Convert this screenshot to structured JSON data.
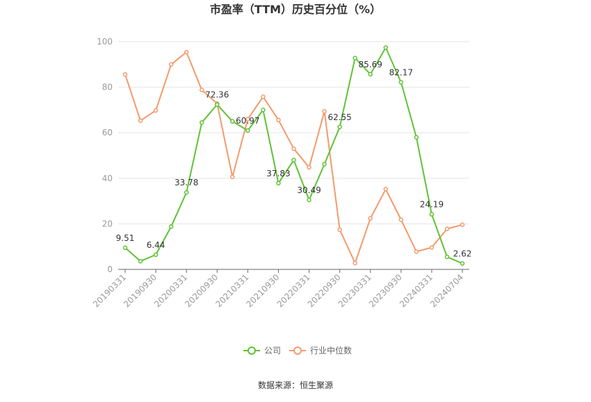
{
  "chart_data": {
    "type": "line",
    "title": "市盈率（TTM）历史百分位（%）",
    "source": "数据来源：恒生聚源",
    "xlabel": "",
    "ylabel": "",
    "ylim": [
      0,
      100
    ],
    "yticks": [
      0,
      20,
      40,
      60,
      80,
      100
    ],
    "x": [
      "20190331",
      "",
      "20190930",
      "",
      "20200331",
      "",
      "20200930",
      "",
      "20210331",
      "",
      "20210930",
      "",
      "20220331",
      "",
      "20220930",
      "",
      "20230331",
      "",
      "20230930",
      "",
      "20240331",
      "",
      "20240704"
    ],
    "x_tick_labels": [
      "20190331",
      "20190930",
      "20200331",
      "20200930",
      "20210331",
      "20210930",
      "20220331",
      "20220930",
      "20230331",
      "20230930",
      "20240331",
      "20240704"
    ],
    "grid": true,
    "legend_position": "bottom",
    "series": [
      {
        "name": "公司",
        "color": "#5fc236",
        "values": [
          9.51,
          3.6,
          6.44,
          18.8,
          33.78,
          64.5,
          72.36,
          65.0,
          60.97,
          70.0,
          37.83,
          48.0,
          30.49,
          46.2,
          62.55,
          92.8,
          85.69,
          97.4,
          82.17,
          58.0,
          24.19,
          5.5,
          2.62
        ],
        "labels": [
          "9.51",
          "",
          "6.44",
          "",
          "33.78",
          "",
          "72.36",
          "",
          "60.97",
          "",
          "37.83",
          "",
          "30.49",
          "",
          "62.55",
          "",
          "85.69",
          "",
          "82.17",
          "",
          "24.19",
          "",
          "2.62"
        ]
      },
      {
        "name": "行业中位数",
        "color": "#f39a6b",
        "values": [
          85.6,
          65.3,
          69.8,
          90.0,
          95.4,
          78.8,
          72.8,
          40.6,
          66.0,
          75.8,
          65.6,
          53.0,
          44.8,
          69.4,
          17.4,
          2.8,
          22.4,
          35.2,
          21.8,
          7.8,
          9.6,
          17.8,
          19.6
        ]
      }
    ]
  }
}
